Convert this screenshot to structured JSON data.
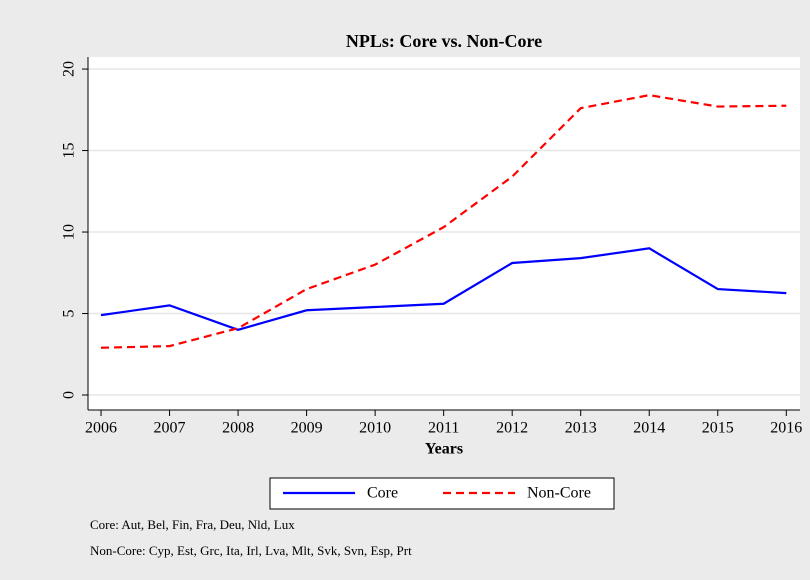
{
  "chart_data": {
    "type": "line",
    "title": "NPLs: Core vs. Non-Core",
    "xlabel": "Years",
    "x": [
      2006,
      2007,
      2008,
      2009,
      2010,
      2011,
      2012,
      2013,
      2014,
      2015,
      2016
    ],
    "series": [
      {
        "name": "Core",
        "color": "#0000ff",
        "line_style": "solid",
        "values": [
          4.9,
          5.5,
          4.0,
          5.2,
          5.4,
          5.6,
          8.1,
          8.4,
          9.0,
          6.5,
          6.25
        ]
      },
      {
        "name": "Non-Core",
        "color": "#ff0000",
        "line_style": "dashed",
        "values": [
          2.9,
          3.0,
          4.1,
          6.5,
          8.0,
          10.3,
          13.4,
          17.6,
          18.4,
          17.7,
          17.75
        ]
      }
    ],
    "xlim": [
      2005.81,
      2016.2
    ],
    "ylim": [
      -0.92,
      20.74
    ],
    "xticks": [
      2006,
      2007,
      2008,
      2009,
      2010,
      2011,
      2012,
      2013,
      2014,
      2015,
      2016
    ],
    "yticks": [
      0,
      5,
      10,
      15,
      20
    ],
    "grid": true,
    "legend_position": "bottom",
    "notes": [
      "Core: Aut, Bel, Fin, Fra, Deu, Nld, Lux",
      "Non-Core: Cyp, Est, Grc, Ita, Irl, Lva, Mlt, Svk, Svn, Esp, Prt"
    ]
  }
}
